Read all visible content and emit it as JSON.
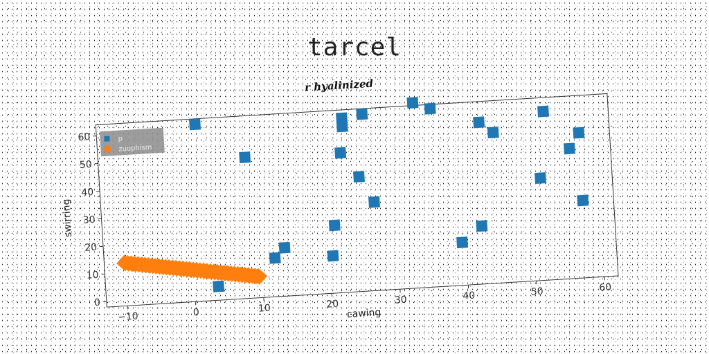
{
  "chart_data": {
    "type": "scatter",
    "title": "tarcel",
    "subtitle": "r hyalinized",
    "xlabel": "cawing",
    "ylabel": "swirring",
    "xlim": [
      -13,
      62
    ],
    "ylim": [
      -2,
      64
    ],
    "xticks": [
      -10,
      0,
      10,
      20,
      30,
      40,
      50,
      60
    ],
    "yticks": [
      0,
      10,
      20,
      30,
      40,
      50,
      60
    ],
    "grid": false,
    "legend_position": "top-left",
    "series": [
      {
        "name": "p",
        "marker": "square",
        "color": "#1f77b4",
        "points": [
          [
            1.5,
            62
          ],
          [
            8.5,
            49
          ],
          [
            3.5,
            3
          ],
          [
            12,
            12
          ],
          [
            13.5,
            15.5
          ],
          [
            20.5,
            11.5
          ],
          [
            21,
            22.5
          ],
          [
            22.5,
            48.5
          ],
          [
            23,
            61
          ],
          [
            23,
            58
          ],
          [
            26,
            62
          ],
          [
            25,
            39.5
          ],
          [
            27,
            30
          ],
          [
            33.5,
            65
          ],
          [
            36,
            62.5
          ],
          [
            39.5,
            13.5
          ],
          [
            42.5,
            19
          ],
          [
            43,
            56.5
          ],
          [
            45,
            52.5
          ],
          [
            51.5,
            35
          ],
          [
            52.5,
            59
          ],
          [
            56,
            45
          ],
          [
            57.5,
            50.5
          ],
          [
            57.5,
            26
          ]
        ]
      },
      {
        "name": "zuophism",
        "marker": "diamond",
        "color": "#ff7f0e",
        "points": [
          [
            -10,
            13.5
          ],
          [
            -9.5,
            13.3
          ],
          [
            -9,
            13.1
          ],
          [
            -8.5,
            12.9
          ],
          [
            -8,
            12.7
          ],
          [
            -7.5,
            12.5
          ],
          [
            -7,
            12.3
          ],
          [
            -6.5,
            12.1
          ],
          [
            -6,
            11.9
          ],
          [
            -5.5,
            11.7
          ],
          [
            -5,
            11.5
          ],
          [
            -4.5,
            11.3
          ],
          [
            -4,
            11.1
          ],
          [
            -3.5,
            10.9
          ],
          [
            -3,
            10.7
          ],
          [
            -2.5,
            10.5
          ],
          [
            -2,
            10.3
          ],
          [
            -1.5,
            10.1
          ],
          [
            -1,
            9.9
          ],
          [
            -0.5,
            9.7
          ],
          [
            0,
            9.5
          ],
          [
            0.5,
            9.3
          ],
          [
            1,
            9.1
          ],
          [
            1.5,
            8.9
          ],
          [
            2,
            8.7
          ],
          [
            2.5,
            8.5
          ],
          [
            3,
            8.3
          ],
          [
            3.5,
            8.1
          ],
          [
            4,
            7.9
          ],
          [
            4.5,
            7.7
          ],
          [
            5,
            7.5
          ],
          [
            5.5,
            7.3
          ],
          [
            6,
            7.1
          ],
          [
            6.5,
            6.9
          ],
          [
            7,
            6.7
          ],
          [
            7.5,
            6.5
          ],
          [
            8,
            6.3
          ],
          [
            8.5,
            6.1
          ],
          [
            9,
            5.9
          ],
          [
            9.5,
            5.7
          ]
        ]
      }
    ]
  }
}
